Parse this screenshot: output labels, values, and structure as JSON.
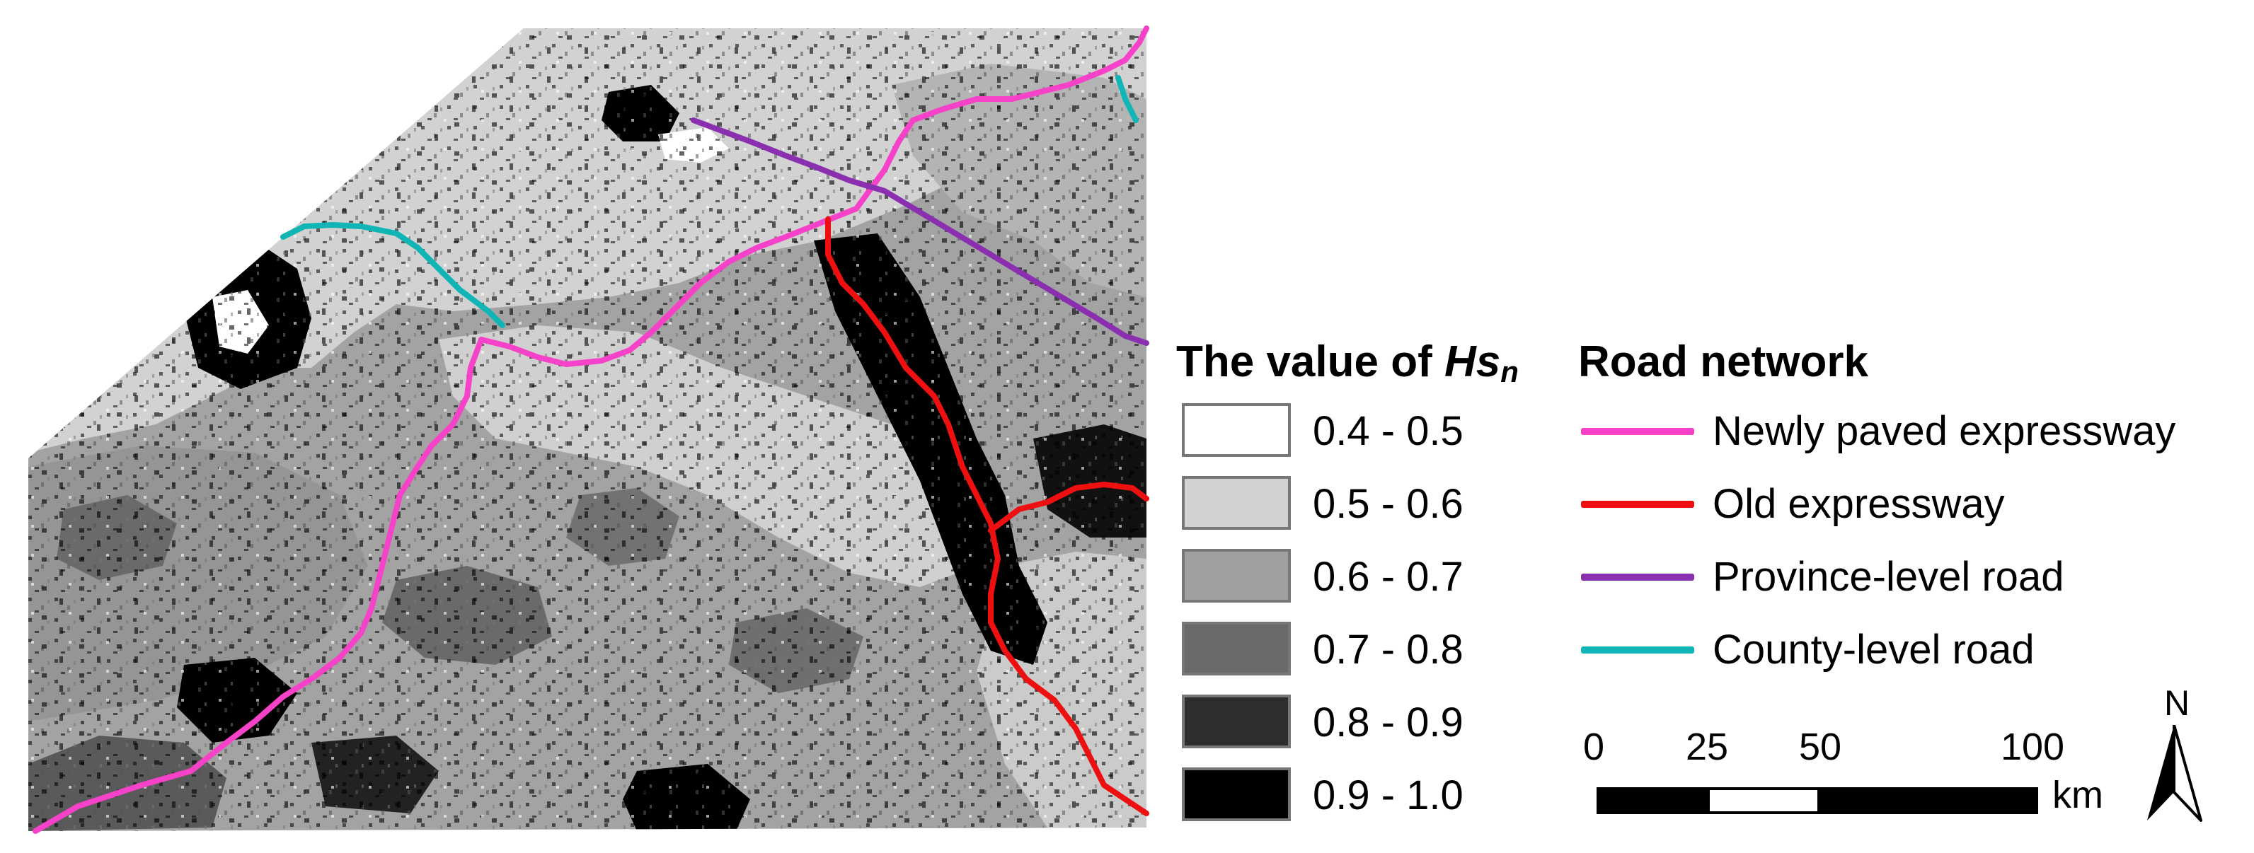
{
  "hs_legend": {
    "title_prefix": "The value of ",
    "title_symbol": "Hs",
    "title_subscript": "n",
    "classes": [
      {
        "label": "0.4 - 0.5",
        "color": "#ffffff"
      },
      {
        "label": "0.5 - 0.6",
        "color": "#d2d2d2"
      },
      {
        "label": "0.6 - 0.7",
        "color": "#a0a0a0"
      },
      {
        "label": "0.7 - 0.8",
        "color": "#6a6a6a"
      },
      {
        "label": "0.8 - 0.9",
        "color": "#2e2e2e"
      },
      {
        "label": "0.9 - 1.0",
        "color": "#000000"
      }
    ]
  },
  "road_legend": {
    "title": "Road network",
    "items": [
      {
        "label": "Newly paved expressway",
        "color": "#f542c8"
      },
      {
        "label": "Old expressway",
        "color": "#ee1010"
      },
      {
        "label": "Province-level road",
        "color": "#8a2fb0"
      },
      {
        "label": "County-level road",
        "color": "#12b5b5"
      }
    ]
  },
  "scale_bar": {
    "ticks": [
      "0",
      "25",
      "50",
      "100"
    ],
    "unit": "km"
  },
  "north_arrow": {
    "label": "N"
  }
}
